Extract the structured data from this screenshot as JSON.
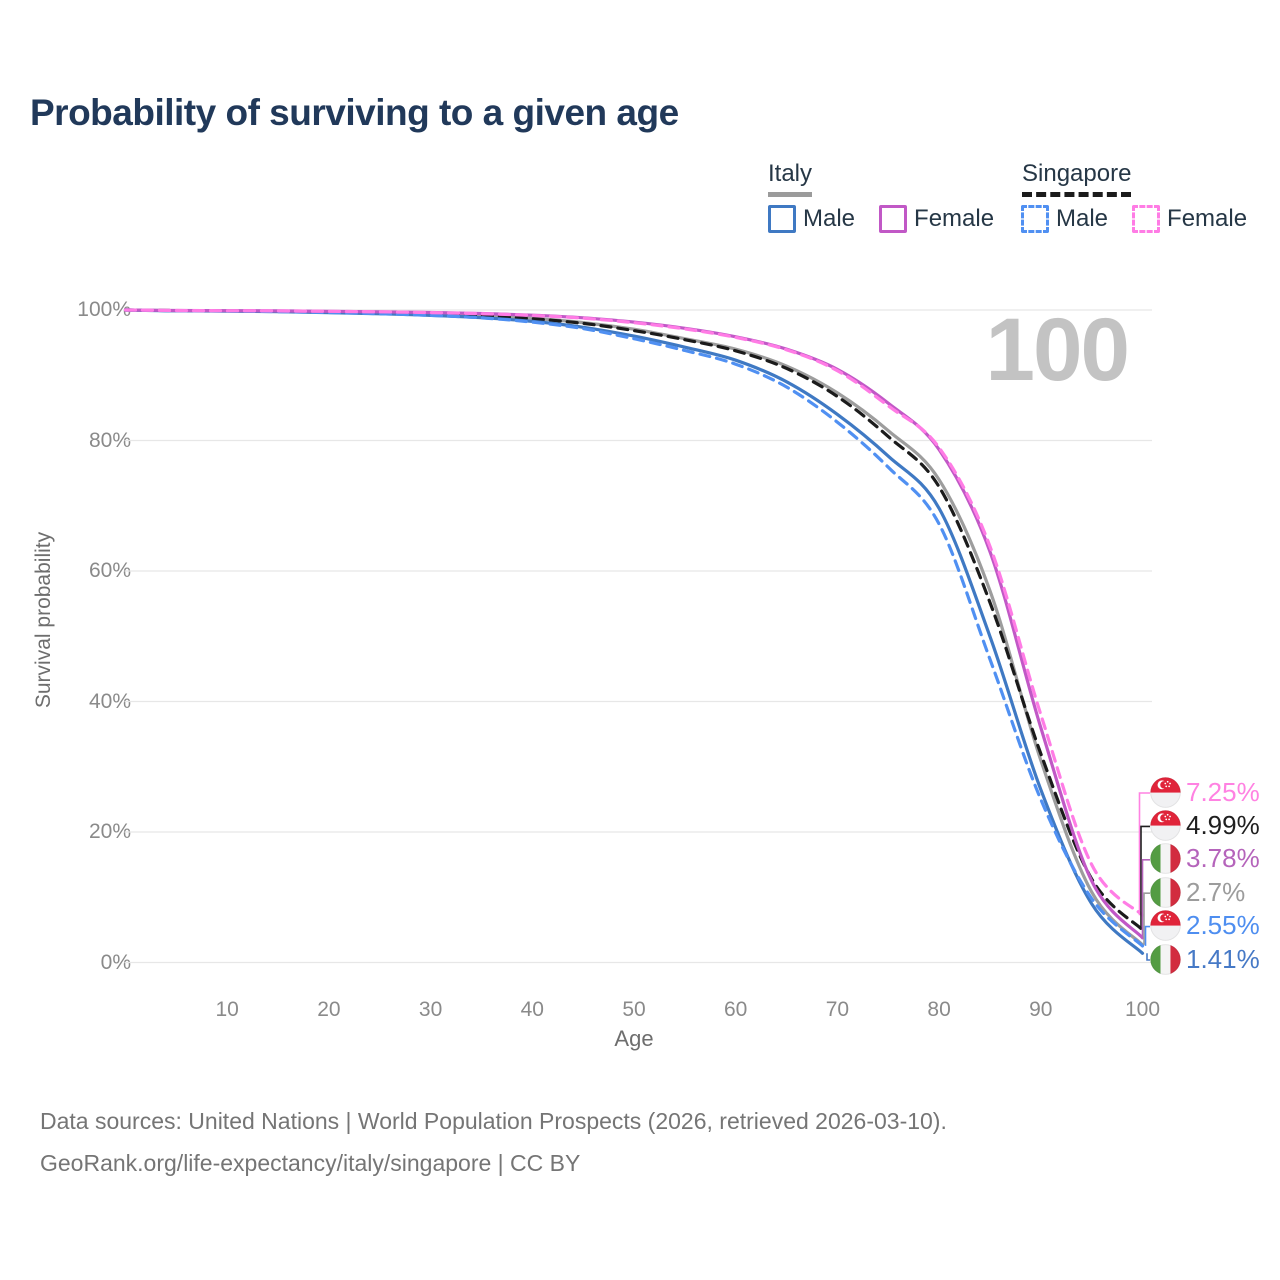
{
  "title": "Probability of surviving to a given age",
  "watermark": "100",
  "legend": {
    "italy": {
      "label": "Italy",
      "male": "Male",
      "female": "Female"
    },
    "singapore": {
      "label": "Singapore",
      "male": "Male",
      "female": "Female"
    }
  },
  "axes": {
    "ylabel": "Survival probability",
    "xlabel": "Age",
    "y_ticks": [
      "0%",
      "20%",
      "40%",
      "60%",
      "80%",
      "100%"
    ],
    "y_tick_values": [
      0,
      20,
      40,
      60,
      80,
      100
    ],
    "x_ticks": [
      "10",
      "20",
      "30",
      "40",
      "50",
      "60",
      "70",
      "80",
      "90",
      "100"
    ],
    "x_tick_values": [
      10,
      20,
      30,
      40,
      50,
      60,
      70,
      80,
      90,
      100
    ],
    "xlim": [
      0,
      100
    ],
    "ylim": [
      0,
      100
    ],
    "grid": "horizontal",
    "gridline_color": "#e7e7e7"
  },
  "footer": {
    "line1": "Data sources: United Nations | World Population Prospects (2026, retrieved 2026-03-10).",
    "line2": "GeoRank.org/life-expectancy/italy/singapore | CC BY"
  },
  "chart_data": {
    "type": "line",
    "title": "Probability of surviving to a given age",
    "xlabel": "Age",
    "ylabel": "Survival probability",
    "x": [
      0,
      5,
      10,
      15,
      20,
      25,
      30,
      35,
      40,
      45,
      50,
      55,
      60,
      65,
      70,
      75,
      80,
      85,
      90,
      95,
      100
    ],
    "series": [
      {
        "name": "Italy",
        "country": "italy",
        "group": "all",
        "style": "solid",
        "color": "#9d9d9d",
        "end_label": "2.7%",
        "label_color": "#9c9c9c",
        "values": [
          100,
          99.9,
          99.86,
          99.8,
          99.7,
          99.57,
          99.4,
          99.14,
          98.72,
          98.07,
          97.05,
          95.6,
          94.0,
          91.4,
          87.3,
          81.5,
          74.0,
          57.0,
          31.0,
          10.8,
          2.7
        ]
      },
      {
        "name": "Singapore",
        "country": "singapore",
        "group": "all",
        "style": "dashed",
        "color": "#1b1b1b",
        "end_label": "4.99%",
        "label_color": "#1f1f1f",
        "values": [
          100,
          99.91,
          99.87,
          99.81,
          99.71,
          99.58,
          99.39,
          99.12,
          98.66,
          97.95,
          96.85,
          95.45,
          93.75,
          91.05,
          86.75,
          80.6,
          72.9,
          55.2,
          32.0,
          12.8,
          4.99
        ]
      },
      {
        "name": "Italy Male",
        "country": "italy",
        "group": "male",
        "style": "solid",
        "color": "#3f79c3",
        "end_label": "1.41%",
        "label_color": "#4679c6",
        "values": [
          100,
          99.87,
          99.82,
          99.74,
          99.6,
          99.42,
          99.18,
          98.82,
          98.25,
          97.35,
          96.0,
          94.3,
          92.3,
          89.0,
          84.0,
          77.6,
          69.6,
          50.0,
          26.5,
          9.0,
          1.41
        ]
      },
      {
        "name": "Singapore Male",
        "country": "singapore",
        "group": "male",
        "style": "dashed",
        "color": "#5090f2",
        "end_label": "2.55%",
        "label_color": "#4e8ef0",
        "values": [
          100,
          99.88,
          99.84,
          99.76,
          99.62,
          99.44,
          99.18,
          98.8,
          98.15,
          97.15,
          95.6,
          93.8,
          91.7,
          88.2,
          82.8,
          75.9,
          67.2,
          46.5,
          25.0,
          9.8,
          2.55
        ]
      },
      {
        "name": "Italy Female",
        "country": "italy",
        "group": "female",
        "style": "solid",
        "color": "#c158c6",
        "end_label": "3.78%",
        "label_color": "#b564bb",
        "values": [
          100,
          99.93,
          99.9,
          99.86,
          99.8,
          99.72,
          99.62,
          99.46,
          99.2,
          98.8,
          98.15,
          97.2,
          95.9,
          94.0,
          90.9,
          85.7,
          78.6,
          63.0,
          36.0,
          12.5,
          3.78
        ]
      },
      {
        "name": "Singapore Female",
        "country": "singapore",
        "group": "female",
        "style": "dashed",
        "color": "#ff7ce5",
        "end_label": "7.25%",
        "label_color": "#ff82e2",
        "values": [
          100,
          99.93,
          99.9,
          99.86,
          99.8,
          99.72,
          99.6,
          99.44,
          99.16,
          98.74,
          98.05,
          97.1,
          95.8,
          93.9,
          90.7,
          85.3,
          78.9,
          63.8,
          38.0,
          15.0,
          7.25
        ]
      }
    ],
    "flag_colors": {
      "singapore_red": "#e0243a",
      "singapore_white": "#f1f1f3",
      "italy_green": "#549c43",
      "italy_white": "#f4f4f4",
      "italy_red": "#d22c3f"
    },
    "legend_position": "top-right"
  }
}
